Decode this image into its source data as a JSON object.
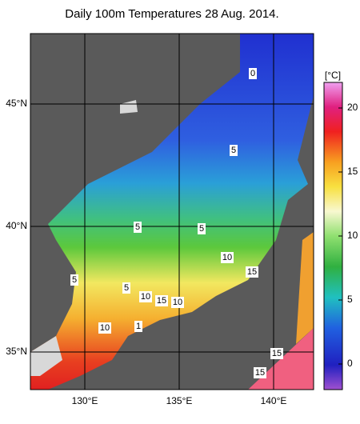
{
  "title": "Daily 100m Temperatures 28 Aug. 2014.",
  "latitude_labels": [
    "45°N",
    "40°N",
    "35°N"
  ],
  "longitude_labels": [
    "130°E",
    "135°E",
    "140°E"
  ],
  "colorbar": {
    "unit": "[°C]",
    "range": [
      -2,
      22
    ],
    "ticks": [
      0,
      5,
      10,
      15,
      20
    ]
  },
  "contour_labels": [
    "0",
    "5",
    "5",
    "5",
    "5",
    "5",
    "10",
    "10",
    "15",
    "10",
    "10",
    "15",
    "15",
    "15",
    "1"
  ]
}
